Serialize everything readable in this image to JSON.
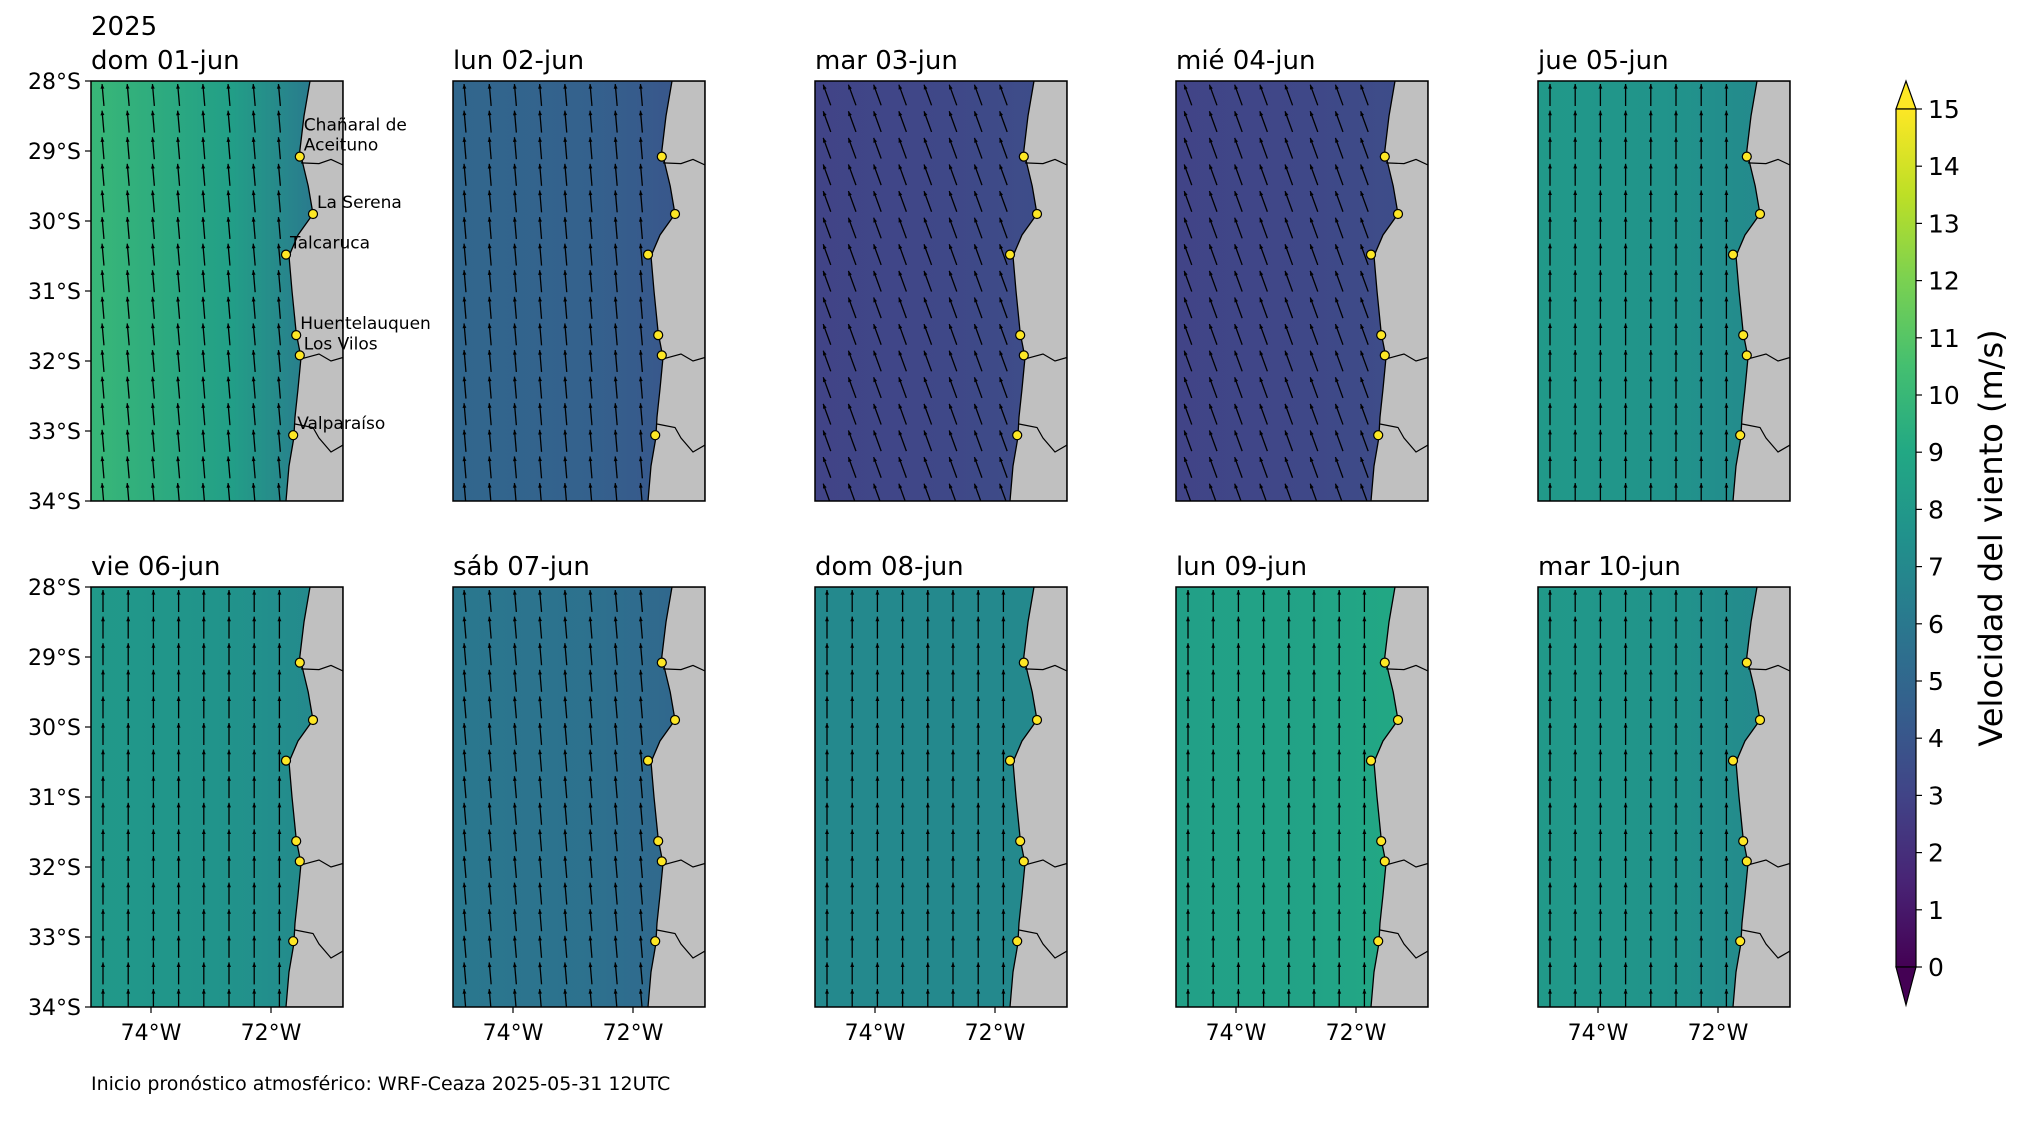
{
  "year_label": "2025",
  "footer_text": "Inicio pronóstico atmosférico: WRF-Ceaza 2025-05-31 12UTC",
  "chart_data": {
    "type": "heatmap",
    "variable": "wind speed with wind direction arrows",
    "lon_range": [
      -75,
      -70.8
    ],
    "lat_range": [
      -34,
      -28
    ],
    "lon_ticks": [
      -74,
      -72
    ],
    "lon_tick_labels": [
      "74°W",
      "72°W"
    ],
    "lat_ticks": [
      -28,
      -29,
      -30,
      -31,
      -32,
      -33,
      -34
    ],
    "lat_tick_labels": [
      "28°S",
      "29°S",
      "30°S",
      "31°S",
      "32°S",
      "33°S",
      "34°S"
    ],
    "colorbar": {
      "label": "Velocidad del viento (m/s)",
      "min": 0,
      "max": 15,
      "ticks": [
        "0",
        "1",
        "2",
        "3",
        "4",
        "5",
        "6",
        "7",
        "8",
        "9",
        "10",
        "11",
        "12",
        "13",
        "14",
        "15"
      ],
      "extend": "both",
      "colormap": "viridis"
    },
    "locations": [
      {
        "name": "Chañaral de Aceituno",
        "label_lines": [
          "Chañaral de",
          "Aceituno"
        ],
        "lon": -71.52,
        "lat": -29.08
      },
      {
        "name": "La Serena",
        "label_lines": [
          "La Serena"
        ],
        "lon": -71.3,
        "lat": -29.9
      },
      {
        "name": "Talcaruca",
        "label_lines": [
          "Talcaruca"
        ],
        "lon": -71.75,
        "lat": -30.48
      },
      {
        "name": "Huentelauquen",
        "label_lines": [
          "Huentelauquen"
        ],
        "lon": -71.58,
        "lat": -31.63
      },
      {
        "name": "Los Vilos",
        "label_lines": [
          "Los Vilos"
        ],
        "lon": -71.52,
        "lat": -31.92
      },
      {
        "name": "Valparaíso",
        "label_lines": [
          "Valparaíso"
        ],
        "lon": -71.63,
        "lat": -33.06
      }
    ],
    "panels": [
      {
        "title": "dom 01-jun",
        "offshore_speed": 10,
        "coastal_speed": 6,
        "wind_dir_deg": 185
      },
      {
        "title": "lun 02-jun",
        "offshore_speed": 5,
        "coastal_speed": 4,
        "wind_dir_deg": 185
      },
      {
        "title": "mar 03-jun",
        "offshore_speed": 3,
        "coastal_speed": 3.5,
        "wind_dir_deg": 200
      },
      {
        "title": "mié 04-jun",
        "offshore_speed": 3,
        "coastal_speed": 3.5,
        "wind_dir_deg": 200
      },
      {
        "title": "jue 05-jun",
        "offshore_speed": 8,
        "coastal_speed": 7,
        "wind_dir_deg": 180
      },
      {
        "title": "vie 06-jun",
        "offshore_speed": 8,
        "coastal_speed": 7,
        "wind_dir_deg": 180
      },
      {
        "title": "sáb 07-jun",
        "offshore_speed": 6,
        "coastal_speed": 5,
        "wind_dir_deg": 185
      },
      {
        "title": "dom 08-jun",
        "offshore_speed": 7,
        "coastal_speed": 7,
        "wind_dir_deg": 180
      },
      {
        "title": "lun 09-jun",
        "offshore_speed": 8.5,
        "coastal_speed": 9,
        "wind_dir_deg": 180
      },
      {
        "title": "mar 10-jun",
        "offshore_speed": 8,
        "coastal_speed": 7,
        "wind_dir_deg": 180
      }
    ]
  }
}
